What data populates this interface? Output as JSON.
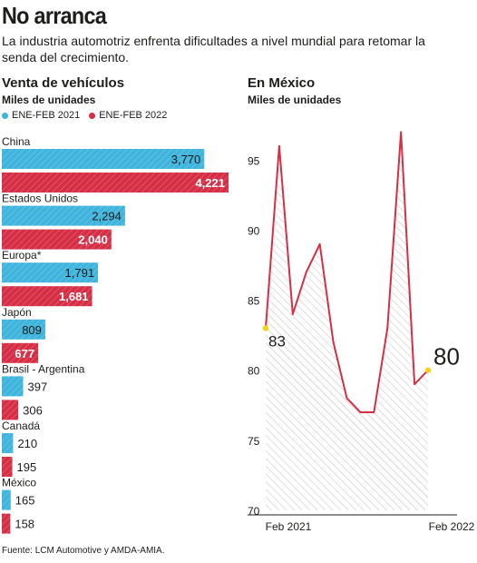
{
  "header": {
    "title": "No arranca",
    "subtitle": "La industria automotriz enfrenta dificultades a nivel mundial para retomar la senda del crecimiento."
  },
  "colors": {
    "series_2021": "#3fb4dc",
    "series_2022": "#d62f45",
    "line": "#d62f45",
    "highlight": "#f2d21b"
  },
  "chart_data": [
    {
      "type": "bar",
      "orientation": "horizontal",
      "title": "Venta de vehículos",
      "subtitle": "Miles de unidades",
      "legend_position": "top-left",
      "categories": [
        "China",
        "Estados Unidos",
        "Europa*",
        "Japón",
        "Brasil - Argentina",
        "Canadá",
        "México"
      ],
      "series": [
        {
          "name": "ENE-FEB 2021",
          "values": [
            3770,
            2294,
            1791,
            809,
            397,
            210,
            165
          ],
          "labels": [
            "3,770",
            "2,294",
            "1,791",
            "809",
            "397",
            "210",
            "165"
          ]
        },
        {
          "name": "ENE-FEB 2022",
          "values": [
            4221,
            2040,
            1681,
            677,
            306,
            195,
            158
          ],
          "labels": [
            "4,221",
            "2,040",
            "1,681",
            "677",
            "306",
            "195",
            "158"
          ]
        }
      ]
    },
    {
      "type": "line",
      "title": "En México",
      "subtitle": "Miles de unidades",
      "x": [
        "2021-02",
        "2021-03",
        "2021-04",
        "2021-05",
        "2021-06",
        "2021-07",
        "2021-08",
        "2021-09",
        "2021-10",
        "2021-11",
        "2021-12",
        "2022-01",
        "2022-02"
      ],
      "x_tick_labels": [
        "Feb 2021",
        "Feb 2022"
      ],
      "values": [
        83,
        96,
        84,
        87,
        89,
        82,
        78,
        77,
        77,
        83,
        97,
        79,
        80
      ],
      "ylim": [
        70,
        98
      ],
      "y_ticks": [
        70,
        75,
        80,
        85,
        90,
        95
      ],
      "annotations": [
        {
          "x": "2021-02",
          "label": "83"
        },
        {
          "x": "2022-02",
          "label": "80"
        }
      ],
      "fill": "hatched",
      "grid": false
    }
  ],
  "footer": {
    "source": "Fuente: LCM Automotive y AMDA-AMIA."
  }
}
